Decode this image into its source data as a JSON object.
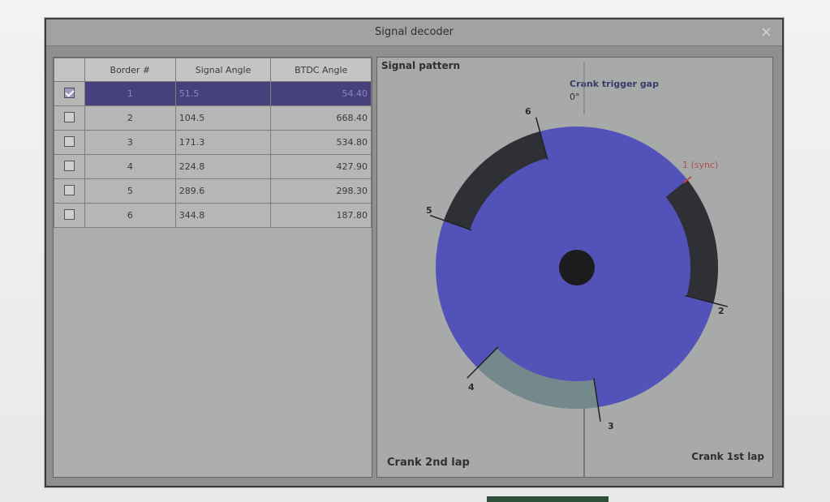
{
  "window": {
    "title": "Signal decoder",
    "close_glyph": "×"
  },
  "table": {
    "headers": [
      "Border #",
      "Signal Angle",
      "BTDC Angle"
    ],
    "rows": [
      {
        "checked": true,
        "border": "1",
        "signal": "51.5",
        "btdc": "54.40"
      },
      {
        "checked": false,
        "border": "2",
        "signal": "104.5",
        "btdc": "668.40"
      },
      {
        "checked": false,
        "border": "3",
        "signal": "171.3",
        "btdc": "534.80"
      },
      {
        "checked": false,
        "border": "4",
        "signal": "224.8",
        "btdc": "427.90"
      },
      {
        "checked": false,
        "border": "5",
        "signal": "289.6",
        "btdc": "298.30"
      },
      {
        "checked": false,
        "border": "6",
        "signal": "344.8",
        "btdc": "187.80"
      }
    ]
  },
  "pattern": {
    "title": "Signal pattern",
    "gap_title": "Crank trigger gap",
    "gap_value": "0°",
    "labels": {
      "b1": "1 (sync)",
      "b2": "2",
      "b3": "3",
      "b4": "4",
      "b5": "5",
      "b6": "6"
    },
    "footer_left": "Crank 2nd lap",
    "footer_right": "Crank 1st lap",
    "colors": {
      "disc": "#5252b8",
      "dark_tooth": "#2f3036",
      "gray_tooth": "#74898c",
      "hub": "#1c1c1e",
      "sync_marker": "#c04848"
    }
  }
}
